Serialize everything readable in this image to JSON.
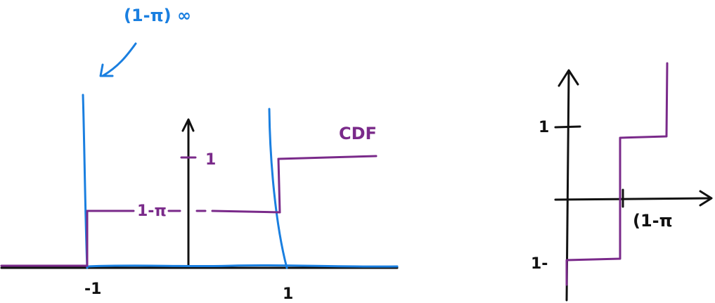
{
  "colors": {
    "ink": "#111111",
    "blue": "#1a7fe0",
    "purple": "#7a2a8a"
  },
  "left_plot": {
    "top_annotation": "(1-π) ∞",
    "cdf_label": "CDF",
    "y_tick_1": "1",
    "mid_level_label": "1-π",
    "x_tick_neg1": "-1",
    "x_tick_1": "1"
  },
  "right_plot": {
    "y_tick_1": "1",
    "y_tick_neg1": "1-",
    "x_label": "(1-π"
  }
}
